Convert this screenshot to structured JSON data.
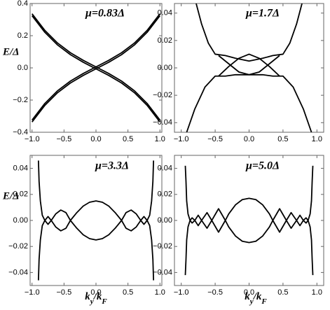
{
  "chart_data": [
    {
      "type": "line",
      "title": "μ=0.83Δ",
      "ylabel": "E/Δ",
      "xlim": [
        -1.03,
        1.03
      ],
      "ylim": [
        -0.4,
        0.4
      ],
      "xticks": [
        {
          "value": -1,
          "label": "−1.0"
        },
        {
          "value": -0.5,
          "label": "−0.5"
        },
        {
          "value": 0,
          "label": "0.0"
        },
        0.5,
        {
          "value": 1,
          "label": "1.0"
        }
      ],
      "yticks": [
        {
          "value": -0.4,
          "label": "−0.4"
        },
        {
          "value": -0.2,
          "label": "−0.2"
        },
        {
          "value": 0,
          "label": "0.0"
        },
        0.2,
        0.4
      ],
      "series": [
        {
          "color": "#000000",
          "x": [
            -1,
            -0.8,
            -0.6,
            -0.4,
            -0.2,
            0,
            0.2,
            0.4,
            0.6,
            0.8,
            1
          ],
          "values": [
            -0.324,
            -0.221,
            -0.142,
            -0.082,
            -0.035,
            0.006,
            0.047,
            0.094,
            0.154,
            0.233,
            0.336
          ]
        },
        {
          "color": "#000000",
          "x": [
            -1,
            -0.8,
            -0.6,
            -0.4,
            -0.2,
            0,
            0.2,
            0.4,
            0.6,
            0.8,
            1
          ],
          "values": [
            -0.336,
            -0.233,
            -0.154,
            -0.094,
            -0.047,
            -0.006,
            0.035,
            0.082,
            0.142,
            0.221,
            0.324
          ]
        },
        {
          "color": "#000000",
          "x": [
            -1,
            -0.8,
            -0.6,
            -0.4,
            -0.2,
            0,
            0.2,
            0.4,
            0.6,
            0.8,
            1
          ],
          "values": [
            0.336,
            0.233,
            0.154,
            0.094,
            0.047,
            0.006,
            -0.035,
            -0.082,
            -0.142,
            -0.221,
            -0.324
          ]
        },
        {
          "color": "#000000",
          "x": [
            -1,
            -0.8,
            -0.6,
            -0.4,
            -0.2,
            0,
            0.2,
            0.4,
            0.6,
            0.8,
            1
          ],
          "values": [
            0.324,
            0.221,
            0.142,
            0.082,
            0.035,
            -0.006,
            -0.047,
            -0.094,
            -0.154,
            -0.233,
            -0.336
          ]
        }
      ]
    },
    {
      "type": "line",
      "title": "μ=1.7Δ",
      "xlim": [
        -1.1,
        1.1
      ],
      "ylim": [
        -0.047,
        0.047
      ],
      "xticks": [
        {
          "value": -1,
          "label": "−1.0"
        },
        {
          "value": -0.5,
          "label": "−0.5"
        },
        {
          "value": 0,
          "label": "0.0"
        },
        0.5,
        {
          "value": 1,
          "label": "1.0"
        }
      ],
      "yticks": [
        {
          "value": -0.04,
          "label": "−0.04"
        },
        {
          "value": -0.02,
          "label": "−0.02"
        },
        {
          "value": 0,
          "label": "0.00"
        },
        0.02,
        0.04
      ],
      "series": [
        {
          "color": "#000000",
          "x": [
            -0.78,
            -0.7,
            -0.6,
            -0.5,
            -0.35,
            -0.2,
            0,
            0.2,
            0.35,
            0.5,
            0.6,
            0.7,
            0.78
          ],
          "values": [
            0.047,
            0.032,
            0.018,
            0.01,
            0.009,
            0.007,
            0.005,
            0.007,
            0.009,
            0.01,
            0.018,
            0.032,
            0.047
          ]
        },
        {
          "color": "#000000",
          "x": [
            -0.92,
            -0.8,
            -0.65,
            -0.5,
            -0.35,
            -0.2,
            0,
            0.2,
            0.35,
            0.5,
            0.65,
            0.8,
            0.92
          ],
          "values": [
            -0.047,
            -0.03,
            -0.014,
            -0.006,
            -0.006,
            -0.005,
            -0.005,
            -0.005,
            -0.006,
            -0.006,
            -0.014,
            -0.03,
            -0.047
          ]
        },
        {
          "color": "#000000",
          "x": [
            -0.45,
            -0.3,
            -0.15,
            0,
            0.15,
            0.3,
            0.45
          ],
          "values": [
            -0.006,
            0.001,
            0.007,
            0.01,
            0.007,
            0.001,
            -0.006
          ]
        },
        {
          "color": "#000000",
          "x": [
            -0.45,
            -0.3,
            -0.15,
            0,
            0.15,
            0.3,
            0.45
          ],
          "values": [
            0.009,
            0.003,
            -0.003,
            -0.005,
            -0.003,
            0.003,
            0.009
          ]
        }
      ]
    },
    {
      "type": "line",
      "title": "μ=3.3Δ",
      "ylabel": "E/Δ",
      "xlabel_parts": [
        "k",
        "y",
        "/k",
        "F"
      ],
      "xlim": [
        -1.03,
        1.03
      ],
      "ylim": [
        -0.05,
        0.05
      ],
      "xticks": [
        {
          "value": -1,
          "label": "−1.0"
        },
        {
          "value": -0.5,
          "label": "−0.5"
        },
        {
          "value": 0,
          "label": "0.0"
        },
        0.5,
        {
          "value": 1,
          "label": "1.0"
        }
      ],
      "yticks": [
        {
          "value": -0.04,
          "label": "−0.04"
        },
        {
          "value": -0.02,
          "label": "−0.02"
        },
        {
          "value": 0,
          "label": "0.00"
        },
        0.02,
        0.04
      ],
      "series": [
        {
          "color": "#000000",
          "x": [
            -0.8,
            -0.75,
            -0.7,
            -0.63,
            -0.55,
            -0.47,
            -0.4,
            -0.3,
            -0.2,
            -0.1,
            0,
            0.1,
            0.2,
            0.3,
            0.4,
            0.47,
            0.55,
            0.63,
            0.7,
            0.75,
            0.8
          ],
          "values": [
            0,
            0.003,
            0,
            -0.005,
            -0.008,
            -0.006,
            0,
            0.006,
            0.011,
            0.014,
            0.015,
            0.014,
            0.011,
            0.006,
            0,
            -0.006,
            -0.008,
            -0.005,
            0,
            0.003,
            0
          ]
        },
        {
          "color": "#000000",
          "x": [
            -0.8,
            -0.75,
            -0.7,
            -0.63,
            -0.55,
            -0.47,
            -0.4,
            -0.3,
            -0.2,
            -0.1,
            0,
            0.1,
            0.2,
            0.3,
            0.4,
            0.47,
            0.55,
            0.63,
            0.7,
            0.75,
            0.8
          ],
          "values": [
            0,
            -0.003,
            0,
            0.005,
            0.008,
            0.006,
            0,
            -0.006,
            -0.011,
            -0.014,
            -0.015,
            -0.014,
            -0.011,
            -0.006,
            0,
            0.006,
            0.008,
            0.005,
            0,
            -0.003,
            0
          ]
        },
        {
          "color": "#000000",
          "x": [
            0.9,
            0.89,
            0.87,
            0.84,
            0.8,
            0.84,
            0.87,
            0.89,
            0.9
          ],
          "values": [
            -0.046,
            -0.03,
            -0.015,
            -0.004,
            0,
            0.004,
            0.015,
            0.03,
            0.046
          ]
        },
        {
          "color": "#000000",
          "x": [
            -0.9,
            -0.89,
            -0.87,
            -0.84,
            -0.8,
            -0.84,
            -0.87,
            -0.89,
            -0.9
          ],
          "values": [
            -0.046,
            -0.03,
            -0.015,
            -0.004,
            0,
            0.004,
            0.015,
            0.03,
            0.046
          ]
        }
      ]
    },
    {
      "type": "line",
      "title": "μ=5.0Δ",
      "xlabel_parts": [
        "k",
        "y",
        "/k",
        "F"
      ],
      "xlim": [
        -1.1,
        1.1
      ],
      "ylim": [
        -0.05,
        0.05
      ],
      "xticks": [
        {
          "value": -1,
          "label": "−1.0"
        },
        {
          "value": -0.5,
          "label": "−0.5"
        },
        {
          "value": 0,
          "label": "0.0"
        },
        0.5,
        {
          "value": 1,
          "label": "1.0"
        }
      ],
      "yticks": [
        {
          "value": -0.04,
          "label": "−0.04"
        },
        {
          "value": -0.02,
          "label": "−0.02"
        },
        {
          "value": 0,
          "label": "0.00"
        },
        0.02,
        0.04
      ],
      "series": [
        {
          "color": "#000000",
          "x": [
            -0.87,
            -0.84,
            -0.8,
            -0.75,
            -0.7,
            -0.62,
            -0.55,
            -0.45,
            -0.35,
            -0.3,
            -0.2,
            -0.1,
            0,
            0.1,
            0.2,
            0.3,
            0.35,
            0.45,
            0.55,
            0.62,
            0.7,
            0.75,
            0.8,
            0.84,
            0.87
          ],
          "values": [
            0,
            0.002,
            0,
            -0.004,
            0,
            0.006,
            0,
            -0.009,
            0,
            0.005,
            0.012,
            0.016,
            0.017,
            0.016,
            0.012,
            0.005,
            0,
            -0.009,
            0,
            0.006,
            0,
            -0.004,
            0,
            0.002,
            0
          ]
        },
        {
          "color": "#000000",
          "x": [
            -0.87,
            -0.84,
            -0.8,
            -0.75,
            -0.7,
            -0.62,
            -0.55,
            -0.45,
            -0.35,
            -0.3,
            -0.2,
            -0.1,
            0,
            0.1,
            0.2,
            0.3,
            0.35,
            0.45,
            0.55,
            0.62,
            0.7,
            0.75,
            0.8,
            0.84,
            0.87
          ],
          "values": [
            0,
            -0.002,
            0,
            0.004,
            0,
            -0.006,
            0,
            0.009,
            0,
            -0.005,
            -0.012,
            -0.016,
            -0.017,
            -0.016,
            -0.012,
            -0.005,
            0,
            0.009,
            0,
            -0.006,
            0,
            0.004,
            0,
            -0.002,
            0
          ]
        },
        {
          "color": "#000000",
          "x": [
            0.94,
            0.93,
            0.92,
            0.9,
            0.87,
            0.9,
            0.92,
            0.93,
            0.94
          ],
          "values": [
            -0.042,
            -0.03,
            -0.015,
            -0.005,
            0,
            0.005,
            0.015,
            0.03,
            0.042
          ]
        },
        {
          "color": "#000000",
          "x": [
            -0.94,
            -0.93,
            -0.92,
            -0.9,
            -0.87,
            -0.9,
            -0.92,
            -0.93,
            -0.94
          ],
          "values": [
            -0.042,
            -0.03,
            -0.015,
            -0.005,
            0,
            0.005,
            0.015,
            0.03,
            0.042
          ]
        }
      ]
    }
  ]
}
